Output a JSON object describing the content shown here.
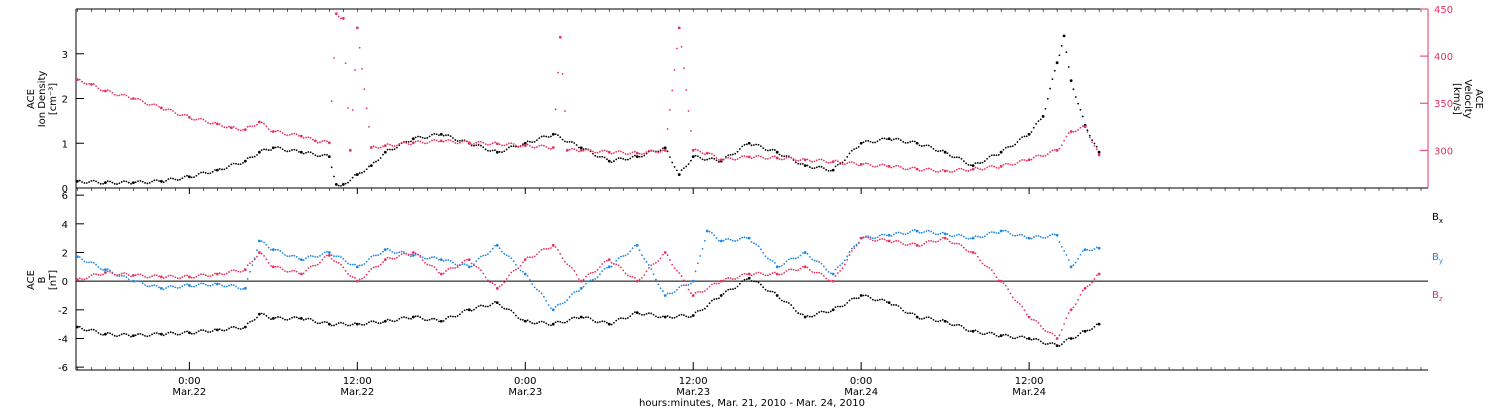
{
  "colors": {
    "axis": "#000000",
    "density": "#000000",
    "velocity": "#e8325e",
    "bx": "#000000",
    "by": "#1e88e5",
    "bz": "#e8325e"
  },
  "xaxis": {
    "label": "hours:minutes, Mar. 21, 2010 - Mar. 24, 2010",
    "hour_range": [
      -8.1,
      88.5
    ],
    "ticks": [
      {
        "hour": 0,
        "time": "0:00",
        "date": "Mar.22"
      },
      {
        "hour": 12,
        "time": "12:00",
        "date": "Mar.22"
      },
      {
        "hour": 24,
        "time": "0:00",
        "date": "Mar.23"
      },
      {
        "hour": 36,
        "time": "12:00",
        "date": "Mar.23"
      },
      {
        "hour": 48,
        "time": "0:00",
        "date": "Mar.24"
      },
      {
        "hour": 60,
        "time": "12:00",
        "date": "Mar.24"
      }
    ]
  },
  "chart_data": [
    {
      "type": "scatter",
      "ylabel_left": [
        "ACE",
        "Ion Density",
        "[cm⁻³]"
      ],
      "ylabel_right": [
        "ACE",
        "Velocity",
        "[km/s]"
      ],
      "ylim_left": [
        0,
        4
      ],
      "ylim_right": [
        260,
        450
      ],
      "yticks_left": [
        0,
        1,
        2,
        3
      ],
      "yticks_right": [
        300,
        350,
        400,
        450
      ],
      "series": [
        {
          "axis": "left",
          "hours": [
            -8,
            -6,
            -4,
            -2,
            0,
            2,
            4,
            5,
            6,
            8,
            10,
            10.5,
            11,
            12,
            13,
            14,
            16,
            18,
            20,
            22,
            24,
            26,
            28,
            30,
            32,
            34,
            35,
            36,
            38,
            40,
            42,
            44,
            46,
            48,
            50,
            52,
            54,
            56,
            58,
            60,
            61,
            62,
            62.5,
            63,
            64,
            65
          ],
          "values": [
            0.15,
            0.12,
            0.12,
            0.15,
            0.25,
            0.4,
            0.6,
            0.8,
            0.9,
            0.8,
            0.7,
            0.08,
            0.08,
            0.3,
            0.5,
            0.8,
            1.1,
            1.2,
            1.0,
            0.8,
            1.0,
            1.2,
            0.9,
            0.6,
            0.7,
            0.9,
            0.3,
            0.7,
            0.6,
            1.0,
            0.8,
            0.5,
            0.4,
            1.0,
            1.1,
            1.0,
            0.8,
            0.5,
            0.8,
            1.2,
            1.6,
            2.8,
            3.4,
            2.4,
            1.4,
            0.8
          ]
        },
        {
          "axis": "right",
          "hours": [
            -8,
            -7,
            -6,
            -4,
            -2,
            0,
            2,
            3,
            4,
            5,
            6,
            8,
            9,
            10,
            10.5,
            11,
            11.5,
            12,
            13,
            14,
            16,
            18,
            20,
            22,
            24,
            26,
            26.5,
            27,
            28,
            30,
            32,
            34,
            35,
            36,
            37,
            38,
            40,
            42,
            44,
            46,
            48,
            50,
            52,
            54,
            56,
            58,
            60,
            62,
            63,
            64,
            65
          ],
          "values": [
            375,
            370,
            363,
            355,
            345,
            335,
            328,
            324,
            322,
            330,
            320,
            315,
            310,
            308,
            445,
            440,
            300,
            430,
            303,
            305,
            308,
            310,
            308,
            307,
            305,
            303,
            420,
            300,
            300,
            298,
            297,
            300,
            430,
            300,
            297,
            290,
            293,
            292,
            290,
            288,
            285,
            283,
            280,
            278,
            280,
            283,
            290,
            300,
            320,
            325,
            295
          ]
        }
      ]
    },
    {
      "type": "scatter",
      "ylabel": [
        "ACE",
        "B",
        "[nT]"
      ],
      "ylim": [
        -6.2,
        6.5
      ],
      "yticks": [
        -6,
        -4,
        -2,
        0,
        2,
        4,
        6
      ],
      "zero_line": true,
      "series": [
        {
          "name": "Bx",
          "hours": [
            -8,
            -6,
            -4,
            -2,
            0,
            2,
            4,
            5,
            6,
            8,
            10,
            12,
            14,
            16,
            18,
            20,
            22,
            24,
            26,
            28,
            30,
            32,
            34,
            36,
            38,
            40,
            42,
            44,
            46,
            48,
            50,
            52,
            54,
            56,
            58,
            60,
            62,
            63,
            64,
            65
          ],
          "values": [
            -3.2,
            -3.7,
            -3.8,
            -3.7,
            -3.6,
            -3.4,
            -3.2,
            -2.3,
            -2.6,
            -2.6,
            -3.0,
            -3.0,
            -2.8,
            -2.5,
            -2.8,
            -2.0,
            -1.5,
            -2.8,
            -3.0,
            -2.5,
            -3.0,
            -2.2,
            -2.5,
            -2.4,
            -1.0,
            0.2,
            -1.0,
            -2.5,
            -2.0,
            -1.0,
            -1.5,
            -2.5,
            -2.8,
            -3.5,
            -3.8,
            -4.0,
            -4.5,
            -4.0,
            -3.5,
            -3.0
          ]
        },
        {
          "name": "By",
          "hours": [
            -8,
            -6,
            -4,
            -2,
            0,
            2,
            4,
            5,
            6,
            8,
            10,
            12,
            14,
            16,
            18,
            20,
            22,
            24,
            26,
            28,
            30,
            32,
            34,
            36,
            37,
            38,
            40,
            42,
            44,
            46,
            48,
            50,
            52,
            54,
            56,
            58,
            60,
            62,
            63,
            64,
            65
          ],
          "values": [
            1.7,
            0.8,
            0.0,
            -0.5,
            -0.3,
            -0.2,
            -0.5,
            2.8,
            2.2,
            1.5,
            2.0,
            1.0,
            2.2,
            1.8,
            1.5,
            1.0,
            2.5,
            0.5,
            -2.0,
            -0.5,
            1.0,
            2.5,
            -1.0,
            0.0,
            3.5,
            2.8,
            3.0,
            1.0,
            2.0,
            0.5,
            3.0,
            3.2,
            3.5,
            3.3,
            3.0,
            3.5,
            3.0,
            3.2,
            1.0,
            2.2,
            2.3
          ]
        },
        {
          "name": "Bz",
          "hours": [
            -8,
            -6,
            -4,
            -2,
            0,
            2,
            4,
            5,
            6,
            8,
            10,
            12,
            14,
            16,
            18,
            20,
            22,
            24,
            26,
            28,
            30,
            32,
            34,
            36,
            38,
            40,
            42,
            44,
            46,
            48,
            50,
            52,
            54,
            56,
            58,
            60,
            62,
            63,
            64,
            65
          ],
          "values": [
            0.1,
            0.6,
            0.4,
            0.3,
            0.3,
            0.5,
            0.8,
            2.0,
            1.0,
            0.5,
            1.8,
            0.0,
            1.5,
            2.0,
            0.5,
            1.5,
            -0.5,
            1.5,
            2.5,
            0.0,
            1.5,
            0.0,
            2.0,
            -1.0,
            0.0,
            0.5,
            0.5,
            1.0,
            0.0,
            3.0,
            2.8,
            2.5,
            3.0,
            2.0,
            0.0,
            -2.5,
            -4.0,
            -2.0,
            -0.5,
            0.5
          ]
        }
      ]
    }
  ]
}
